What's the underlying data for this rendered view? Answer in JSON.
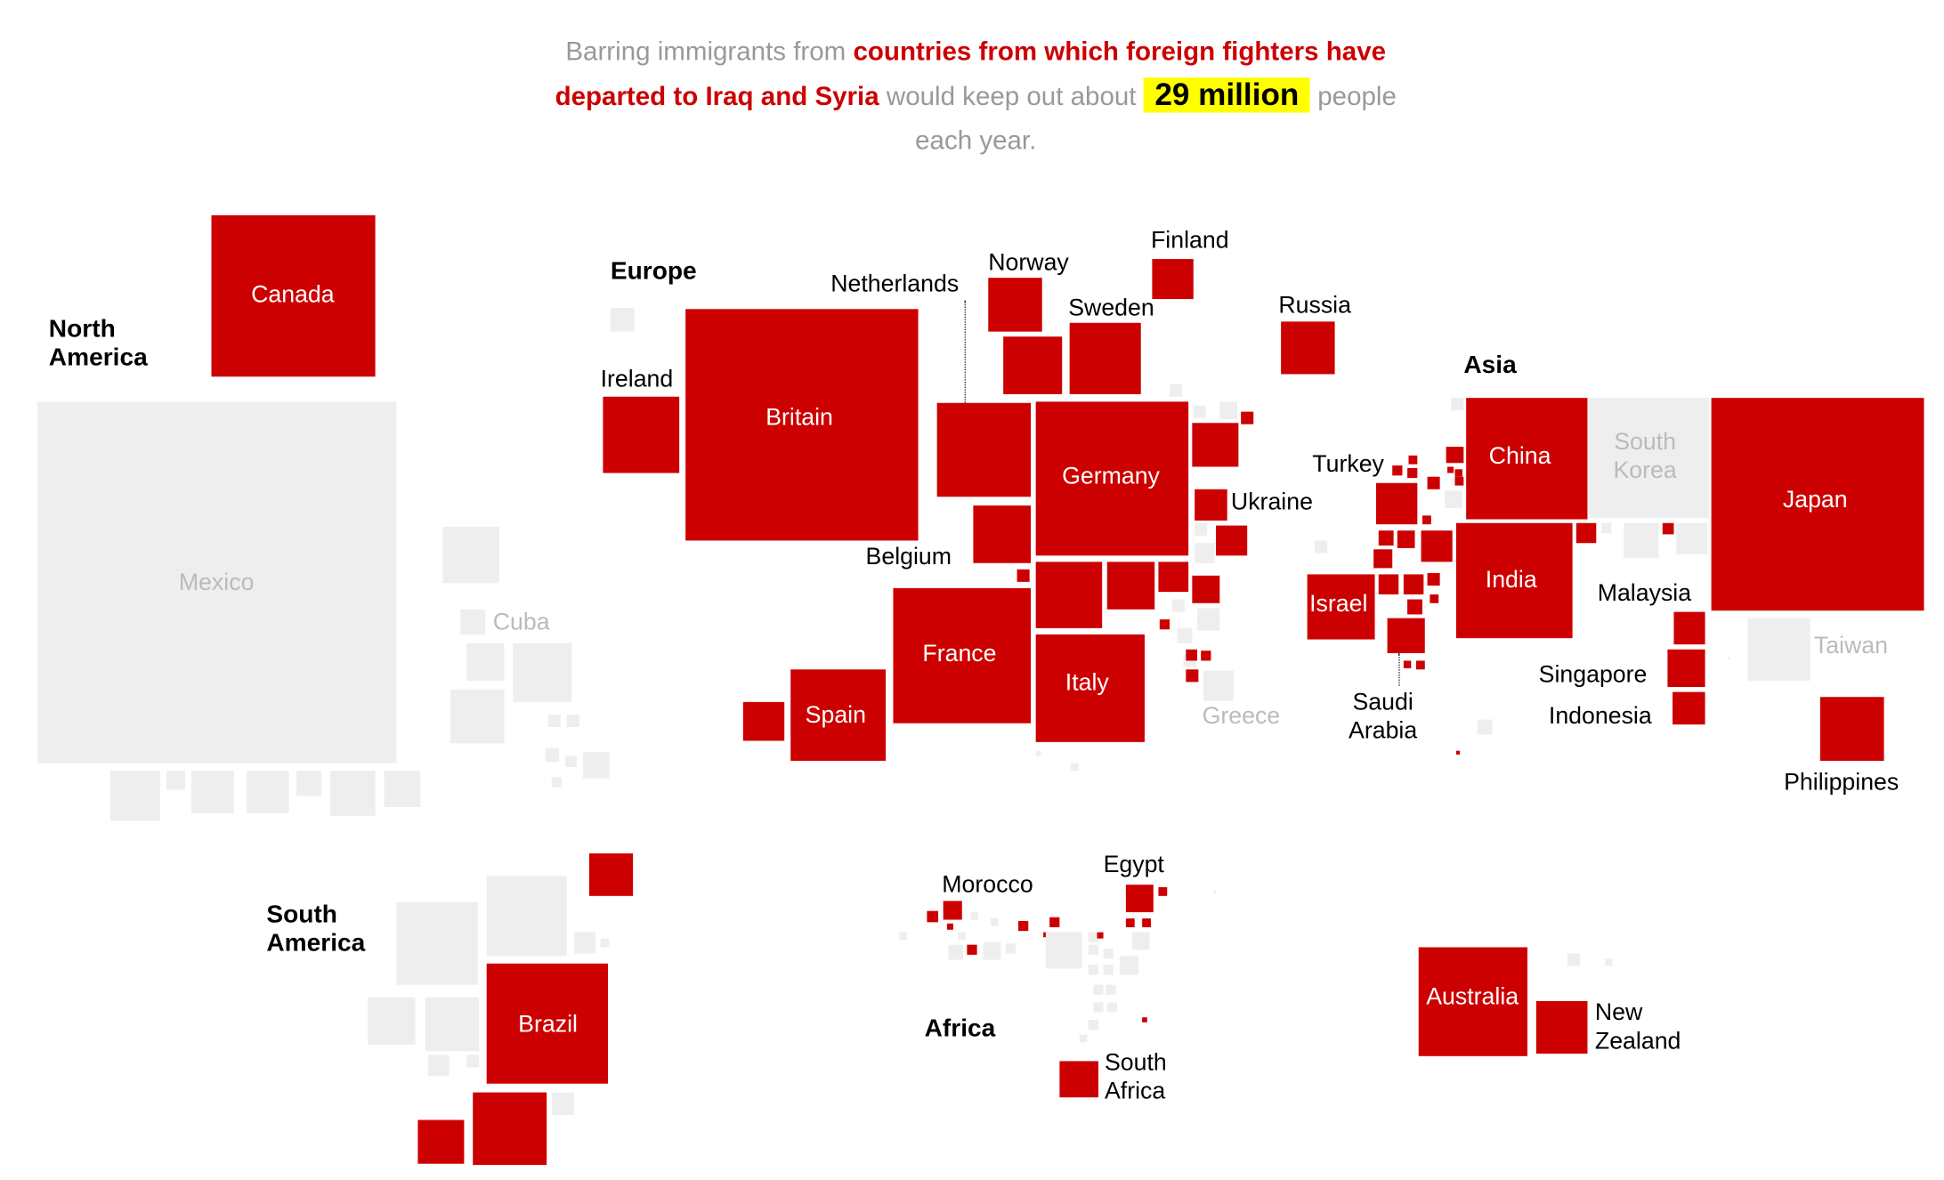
{
  "headline": {
    "part1": "Barring immigrants from ",
    "highlight": "countries from which foreign fighters have departed to Iraq and Syria",
    "part2": " would keep out about ",
    "number": "29 million",
    "part3": " people each year."
  },
  "colors": {
    "barred": "#cc0000",
    "not_barred": "#eeeeee",
    "highlight_bg": "#ffff00",
    "muted_text": "#999999"
  },
  "regions": {
    "north_america": [
      "North",
      "America"
    ],
    "europe": "Europe",
    "asia": "Asia",
    "south_america": [
      "South",
      "America"
    ],
    "africa": "Africa"
  },
  "labels": {
    "canada": "Canada",
    "mexico": "Mexico",
    "cuba": "Cuba",
    "ireland": "Ireland",
    "britain": "Britain",
    "netherlands": "Netherlands",
    "norway": "Norway",
    "finland": "Finland",
    "sweden": "Sweden",
    "russia": "Russia",
    "germany": "Germany",
    "ukraine": "Ukraine",
    "belgium": "Belgium",
    "france": "France",
    "spain": "Spain",
    "italy": "Italy",
    "greece": "Greece",
    "turkey": "Turkey",
    "israel": "Israel",
    "saudi_arabia": [
      "Saudi",
      "Arabia"
    ],
    "china": "China",
    "south_korea": [
      "South",
      "Korea"
    ],
    "japan": "Japan",
    "india": "India",
    "malaysia": "Malaysia",
    "singapore": "Singapore",
    "indonesia": "Indonesia",
    "taiwan": "Taiwan",
    "philippines": "Philippines",
    "brazil": "Brazil",
    "morocco": "Morocco",
    "egypt": "Egypt",
    "south_africa": [
      "South",
      "Africa"
    ],
    "australia": "Australia",
    "new_zealand": [
      "New",
      "Zealand"
    ]
  }
}
